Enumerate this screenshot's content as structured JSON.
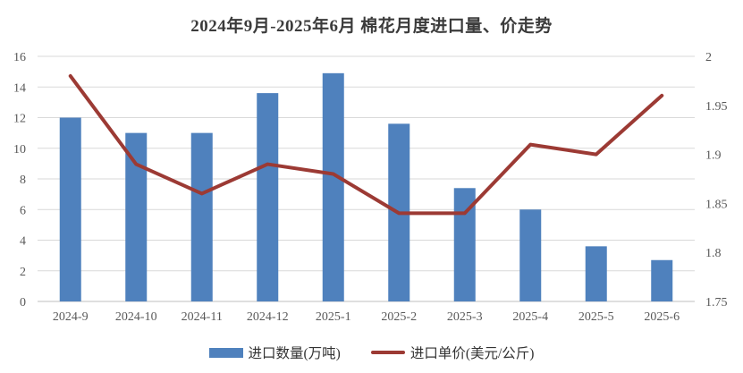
{
  "chart_data": {
    "type": "bar",
    "subtype": "bar+line dual-axis",
    "title": "2024年9月-2025年6月 棉花月度进口量、价走势",
    "categories": [
      "2024-9",
      "2024-10",
      "2024-11",
      "2024-12",
      "2025-1",
      "2025-2",
      "2025-3",
      "2025-4",
      "2025-5",
      "2025-6"
    ],
    "series": [
      {
        "name": "进口数量(万吨)",
        "type": "bar",
        "axis": "left",
        "color": "#4F81BD",
        "values": [
          12,
          11,
          11,
          13.6,
          14.9,
          11.6,
          7.4,
          6,
          3.6,
          2.7
        ]
      },
      {
        "name": "进口单价(美元/公斤)",
        "type": "line",
        "axis": "right",
        "color": "#9C3A34",
        "values": [
          1.98,
          1.89,
          1.86,
          1.89,
          1.88,
          1.84,
          1.84,
          1.91,
          1.9,
          1.96
        ]
      }
    ],
    "left_axis": {
      "min": 0,
      "max": 16,
      "ticks": [
        "0",
        "2",
        "4",
        "6",
        "8",
        "10",
        "12",
        "14",
        "16"
      ]
    },
    "right_axis": {
      "min": 1.75,
      "max": 2,
      "ticks": [
        "1.75",
        "1.8",
        "1.85",
        "1.9",
        "1.95",
        "2"
      ]
    },
    "grid": true,
    "legend_position": "bottom",
    "style": {
      "grid_color": "#D9D9D9",
      "axis_line_color": "#BFBFBF",
      "tick_label_color": "#595959",
      "title_color": "#3b3b3b"
    }
  }
}
